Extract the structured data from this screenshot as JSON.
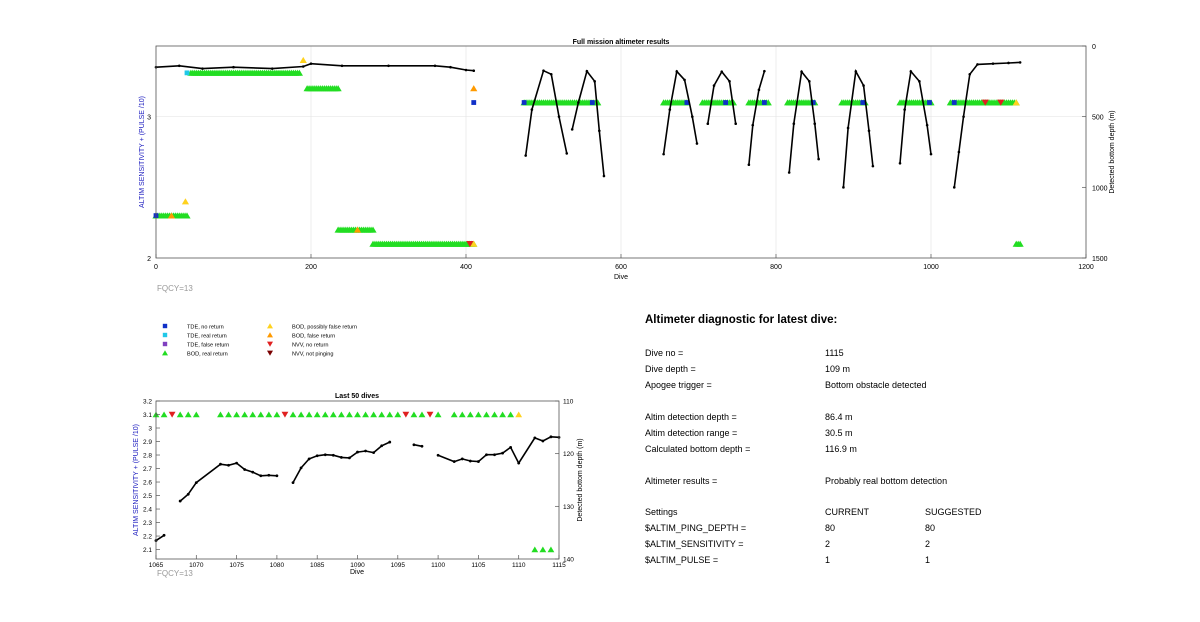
{
  "main_chart": {
    "title": "Full mission altimeter results",
    "xlabel": "Dive",
    "ylabel_left": "ALTIM SENSITIVITY + (PULSE /10)",
    "ylabel_right": "Detected bottom depth (m)",
    "fqcy": "FQCY=13",
    "xticks": [
      "0",
      "200",
      "400",
      "600",
      "800",
      "1000",
      "1200"
    ],
    "yticks_left": [
      "2",
      "3"
    ],
    "yticks_right": [
      "0",
      "500",
      "1000",
      "1500"
    ]
  },
  "legend": [
    {
      "label": "TDE, no return",
      "marker": "square",
      "color": "#1030c8"
    },
    {
      "label": "TDE, real return",
      "marker": "square",
      "color": "#20c8e8"
    },
    {
      "label": "TDE, false return",
      "marker": "square",
      "color": "#8040c0"
    },
    {
      "label": "BOD, real return",
      "marker": "triangle-up",
      "color": "#22dd22"
    },
    {
      "label": "BOD, possibly false return",
      "marker": "triangle-up",
      "color": "#ffd21e"
    },
    {
      "label": "BOD, false return",
      "marker": "triangle-up",
      "color": "#ff9a00"
    },
    {
      "label": "NVV, no return",
      "marker": "triangle-down",
      "color": "#e02020"
    },
    {
      "label": "NVV, not pinging",
      "marker": "triangle-down",
      "color": "#7a0000"
    }
  ],
  "zoom_chart": {
    "title": "Last 50 dives",
    "xlabel": "Dive",
    "ylabel_left": "ALTIM SENSITIVITY + (PULSE /10)",
    "ylabel_right": "Detected bottom depth (m)",
    "fqcy": "FQCY=13",
    "xticks": [
      "1065",
      "1070",
      "1075",
      "1080",
      "1085",
      "1090",
      "1095",
      "1100",
      "1105",
      "1110",
      "1115"
    ],
    "yticks_left": [
      "2.1",
      "2.2",
      "2.3",
      "2.4",
      "2.5",
      "2.6",
      "2.7",
      "2.8",
      "2.9",
      "3",
      "3.1",
      "3.2"
    ],
    "yticks_right": [
      "110",
      "120",
      "130",
      "140"
    ]
  },
  "diagnostic": {
    "title": "Altimeter diagnostic for latest dive:",
    "rows": [
      {
        "label": "Dive no =",
        "value": "1115",
        "extra": ""
      },
      {
        "label": "Dive depth =",
        "value": "109 m",
        "extra": ""
      },
      {
        "label": "Apogee trigger =",
        "value": "Bottom obstacle detected",
        "extra": ""
      },
      {
        "label": "Altim detection depth =",
        "value": "86.4 m",
        "extra": ""
      },
      {
        "label": "Altim detection range =",
        "value": "30.5 m",
        "extra": ""
      },
      {
        "label": "Calculated bottom depth =",
        "value": "116.9 m",
        "extra": ""
      },
      {
        "label": "Altimeter results =",
        "value": "Probably real bottom detection",
        "extra": ""
      },
      {
        "label": "Settings",
        "value": "CURRENT",
        "extra": "SUGGESTED"
      },
      {
        "label": "$ALTIM_PING_DEPTH =",
        "value": "80",
        "extra": "80"
      },
      {
        "label": "$ALTIM_SENSITIVITY =",
        "value": "2",
        "extra": "2"
      },
      {
        "label": "$ALTIM_PULSE =",
        "value": "1",
        "extra": "1"
      }
    ]
  },
  "chart_data": [
    {
      "type": "scatter",
      "title": "Full mission altimeter results",
      "xlabel": "Dive",
      "ylabel": "ALTIM SENSITIVITY + (PULSE /10)",
      "y2label": "Detected bottom depth (m)",
      "xlim": [
        0,
        1200
      ],
      "ylim": [
        2,
        3.5
      ],
      "y2lim": [
        1500,
        0
      ],
      "marker_series": [
        {
          "name": "BOD, real return",
          "segments": [
            [
              0,
              40,
              2.3
            ],
            [
              45,
              185,
              3.31
            ],
            [
              195,
              235,
              3.2
            ],
            [
              235,
              280,
              2.2
            ],
            [
              280,
              410,
              2.1
            ],
            [
              475,
              570,
              3.1
            ],
            [
              655,
              685,
              3.1
            ],
            [
              705,
              745,
              3.1
            ],
            [
              765,
              790,
              3.1
            ],
            [
              815,
              850,
              3.1
            ],
            [
              885,
              915,
              3.1
            ],
            [
              960,
              1000,
              3.1
            ],
            [
              1025,
              1110,
              3.1
            ],
            [
              1110,
              1115,
              2.1
            ]
          ]
        },
        {
          "name": "TDE, no return",
          "points": [
            [
              0,
              2.3
            ],
            [
              410,
              3.1
            ],
            [
              475,
              3.1
            ],
            [
              563,
              3.1
            ],
            [
              685,
              3.1
            ],
            [
              735,
              3.1
            ],
            [
              785,
              3.1
            ],
            [
              848,
              3.1
            ],
            [
              912,
              3.1
            ],
            [
              998,
              3.1
            ],
            [
              1030,
              3.1
            ]
          ]
        },
        {
          "name": "TDE, real return",
          "points": [
            [
              40,
              3.31
            ]
          ]
        },
        {
          "name": "BOD, possibly false return",
          "points": [
            [
              38,
              2.4
            ],
            [
              190,
              3.4
            ],
            [
              410,
              2.1
            ],
            [
              1110,
              3.1
            ]
          ]
        },
        {
          "name": "BOD, false return",
          "points": [
            [
              410,
              3.2
            ],
            [
              20,
              2.3
            ],
            [
              260,
              2.2
            ]
          ]
        },
        {
          "name": "NVV, no return",
          "points": [
            [
              405,
              2.1
            ],
            [
              1070,
              3.1
            ],
            [
              1090,
              3.1
            ]
          ]
        }
      ],
      "depth_series": {
        "name": "Detected bottom depth",
        "segments": [
          [
            [
              0,
              150
            ],
            [
              30,
              140
            ],
            [
              60,
              160
            ],
            [
              100,
              150
            ],
            [
              150,
              160
            ],
            [
              190,
              145
            ],
            [
              200,
              125
            ],
            [
              240,
              140
            ],
            [
              300,
              140
            ],
            [
              360,
              140
            ],
            [
              380,
              150
            ],
            [
              400,
              170
            ],
            [
              410,
              175
            ]
          ],
          [
            [
              477,
              775
            ],
            [
              485,
              450
            ],
            [
              500,
              175
            ],
            [
              510,
              200
            ],
            [
              520,
              500
            ],
            [
              530,
              760
            ]
          ],
          [
            [
              537,
              590
            ],
            [
              545,
              400
            ],
            [
              556,
              178
            ],
            [
              566,
              250
            ],
            [
              572,
              600
            ],
            [
              578,
              920
            ]
          ],
          [
            [
              655,
              765
            ],
            [
              663,
              450
            ],
            [
              672,
              180
            ],
            [
              682,
              240
            ],
            [
              692,
              500
            ],
            [
              698,
              690
            ]
          ],
          [
            [
              712,
              550
            ],
            [
              720,
              280
            ],
            [
              730,
              182
            ],
            [
              740,
              250
            ],
            [
              748,
              550
            ]
          ],
          [
            [
              765,
              840
            ],
            [
              770,
              560
            ],
            [
              778,
              310
            ],
            [
              785,
              178
            ]
          ],
          [
            [
              817,
              895
            ],
            [
              823,
              550
            ],
            [
              833,
              182
            ],
            [
              843,
              250
            ],
            [
              850,
              550
            ],
            [
              855,
              800
            ]
          ],
          [
            [
              887,
              1000
            ],
            [
              893,
              580
            ],
            [
              903,
              180
            ],
            [
              913,
              280
            ],
            [
              920,
              600
            ],
            [
              925,
              850
            ]
          ],
          [
            [
              960,
              830
            ],
            [
              966,
              450
            ],
            [
              974,
              180
            ],
            [
              985,
              250
            ],
            [
              995,
              560
            ],
            [
              1000,
              765
            ]
          ],
          [
            [
              1030,
              1000
            ],
            [
              1036,
              750
            ],
            [
              1042,
              500
            ],
            [
              1050,
              200
            ],
            [
              1060,
              130
            ],
            [
              1080,
              125
            ],
            [
              1100,
              120
            ],
            [
              1115,
              116
            ]
          ]
        ]
      }
    },
    {
      "type": "scatter",
      "title": "Last 50 dives",
      "xlabel": "Dive",
      "ylabel": "ALTIM SENSITIVITY + (PULSE /10)",
      "y2label": "Detected bottom depth (m)",
      "xlim": [
        1065,
        1115
      ],
      "ylim": [
        2.03,
        3.2
      ],
      "y2lim": [
        140,
        110
      ],
      "markers": {
        "BOD, real return": [
          1065,
          1066,
          1068,
          1069,
          1070,
          1073,
          1074,
          1075,
          1076,
          1077,
          1078,
          1079,
          1080,
          1082,
          1083,
          1084,
          1085,
          1086,
          1087,
          1088,
          1089,
          1090,
          1091,
          1092,
          1093,
          1094,
          1095,
          1097,
          1098,
          1100,
          1102,
          1103,
          1104,
          1105,
          1106,
          1107,
          1108,
          1109
        ],
        "NVV, no return": [
          1067,
          1081,
          1096,
          1099
        ],
        "BOD, possibly false return": [
          1110
        ],
        "BOD, real return (sensitivity 2.1)": [
          1112,
          1113,
          1114
        ]
      },
      "depth_segments": [
        [
          [
            1065,
            136.5
          ],
          [
            1066,
            135.5
          ]
        ],
        [
          [
            1068,
            129
          ],
          [
            1069,
            127.7
          ],
          [
            1070,
            125.5
          ],
          [
            1073,
            122
          ],
          [
            1074,
            122.2
          ],
          [
            1075,
            121.8
          ],
          [
            1076,
            123
          ],
          [
            1077,
            123.5
          ],
          [
            1078,
            124.2
          ],
          [
            1079,
            124.1
          ],
          [
            1080,
            124.2
          ]
        ],
        [
          [
            1082,
            125.5
          ],
          [
            1083,
            122.7
          ],
          [
            1084,
            121
          ],
          [
            1085,
            120.4
          ],
          [
            1086,
            120.2
          ],
          [
            1087,
            120.3
          ],
          [
            1088,
            120.7
          ],
          [
            1089,
            120.8
          ],
          [
            1090,
            119.7
          ],
          [
            1091,
            119.5
          ],
          [
            1092,
            119.8
          ],
          [
            1093,
            118.5
          ],
          [
            1094,
            117.8
          ]
        ],
        [
          [
            1097,
            118.3
          ],
          [
            1098,
            118.6
          ]
        ],
        [
          [
            1100,
            120.3
          ],
          [
            1102,
            121.5
          ],
          [
            1103,
            121
          ],
          [
            1104,
            121.4
          ],
          [
            1105,
            121.5
          ],
          [
            1106,
            120.2
          ],
          [
            1107,
            120.2
          ],
          [
            1108,
            119.9
          ],
          [
            1109,
            118.8
          ],
          [
            1110,
            121.8
          ],
          [
            1112,
            117
          ],
          [
            1113,
            117.6
          ],
          [
            1114,
            116.8
          ],
          [
            1115,
            116.9
          ]
        ]
      ]
    }
  ]
}
